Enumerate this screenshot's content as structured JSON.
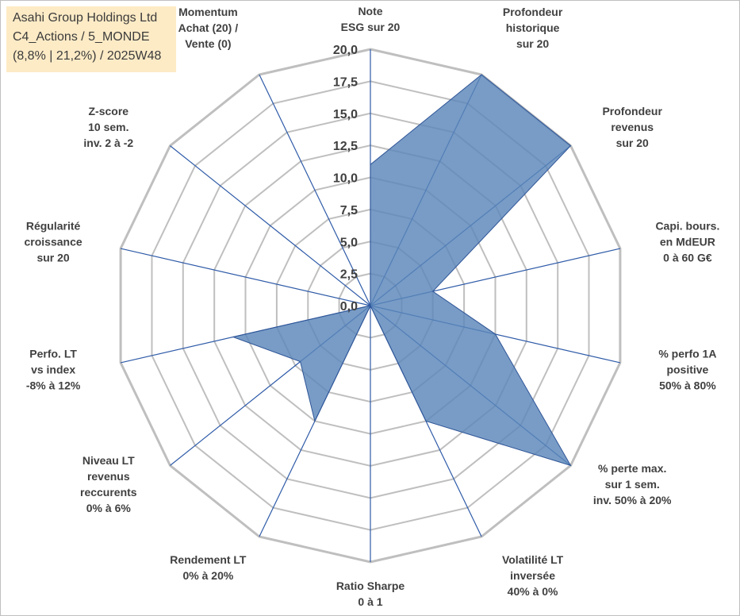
{
  "info": {
    "company": "Asahi Group Holdings Ltd",
    "portfolio": "C4_Actions / 5_MONDE",
    "stats": "(8,8% | 21,2%) / 2025W48"
  },
  "colors": {
    "fill": "#5a86b9",
    "stroke": "#2f5597",
    "grid": "#bfbfbf",
    "spoke": "#2f5ba8",
    "box": "#fdebc6"
  },
  "chart_data": {
    "type": "radar",
    "series": [
      {
        "name": "Asahi Group Holdings Ltd",
        "values": [
          11,
          20,
          20,
          5,
          10,
          20,
          10,
          0,
          10,
          7,
          11,
          0,
          0,
          0
        ]
      }
    ],
    "axes": [
      {
        "label": [
          "Note",
          "ESG sur 20"
        ]
      },
      {
        "label": [
          "Profondeur",
          "historique",
          "sur 20"
        ]
      },
      {
        "label": [
          "Profondeur",
          "revenus",
          "sur 20"
        ]
      },
      {
        "label": [
          "Capi. bours.",
          "en MdEUR",
          "0 à 60 G€"
        ]
      },
      {
        "label": [
          "% perfo 1A",
          "positive",
          "50% à 80%"
        ]
      },
      {
        "label": [
          "% perte max.",
          "sur 1 sem.",
          "inv. 50% à 20%"
        ]
      },
      {
        "label": [
          "Volatilité LT",
          "inversée",
          "40% à 0%"
        ]
      },
      {
        "label": [
          "Ratio Sharpe",
          "0 à 1"
        ]
      },
      {
        "label": [
          "Rendement LT",
          "0% à 20%"
        ]
      },
      {
        "label": [
          "Niveau LT",
          "revenus",
          "reccurents",
          "0% à 6%"
        ]
      },
      {
        "label": [
          "Perfo. LT",
          "vs index",
          "-8% à 12%"
        ]
      },
      {
        "label": [
          "Régularité",
          "croissance",
          "sur 20"
        ]
      },
      {
        "label": [
          "Z-score",
          "10 sem.",
          "inv. 2 à -2"
        ]
      },
      {
        "label": [
          "Momentum",
          "Achat (20) /",
          "Vente (0)"
        ]
      }
    ],
    "r_min": 0,
    "r_max": 20,
    "ticks": [
      "0,0",
      "2,5",
      "5,0",
      "7,5",
      "10,0",
      "12,5",
      "15,0",
      "17,5",
      "20,0"
    ]
  }
}
